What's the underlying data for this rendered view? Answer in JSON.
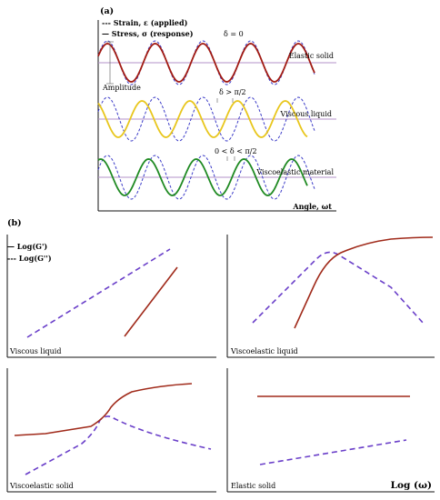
{
  "panel_a": {
    "tag": "(a)",
    "legend": {
      "strain": "--- Strain, ε (applied)",
      "stress": "— Stress, σ (response)"
    },
    "rows": [
      {
        "label": "Elastic solid",
        "delta": "δ = 0",
        "stress_color": "#a11a12"
      },
      {
        "label": "Viscous liquid",
        "delta": "δ > π/2",
        "stress_color": "#e8c61c"
      },
      {
        "label": "Viscoelastic material",
        "delta": "0 < δ < π/2",
        "stress_color": "#1f8a22"
      }
    ],
    "amplitude_label": "Amplitude",
    "x_axis_label": "Angle, ωt",
    "strain_color": "#3c3cc8"
  },
  "panel_b": {
    "tag": "(b)",
    "legend": {
      "g1": "— Log(G')",
      "g2": "--- Log(G'')"
    },
    "x_axis_label": "Log (ω)",
    "g1_color": "#a02a1a",
    "g2_color": "#6a3fc9",
    "plots": [
      {
        "label": "Viscous liquid"
      },
      {
        "label": "Viscoelastic liquid"
      },
      {
        "label": "Viscoelastic solid"
      },
      {
        "label": "Elastic solid"
      }
    ]
  }
}
